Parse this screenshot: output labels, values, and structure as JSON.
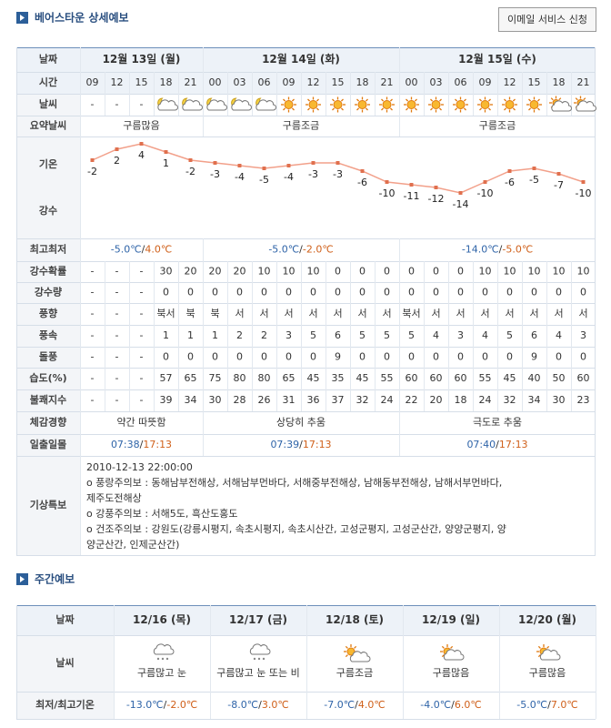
{
  "header": {
    "title": "베어스타운 상세예보",
    "button": "이메일 서비스 신청"
  },
  "detail": {
    "labels": {
      "date": "날짜",
      "time": "시간",
      "weather": "날씨",
      "summary": "요약날씨",
      "temp": "기온",
      "precip": "강수",
      "high_low": "최고최저"
    },
    "dates": [
      "12월 13일 (월)",
      "12월 14일 (화)",
      "12월 15일 (수)"
    ],
    "times": [
      "09",
      "12",
      "15",
      "18",
      "21",
      "00",
      "03",
      "06",
      "09",
      "12",
      "15",
      "18",
      "21",
      "00",
      "03",
      "06",
      "09",
      "12",
      "15",
      "18",
      "21"
    ],
    "weather": [
      "-",
      "-",
      "-",
      null,
      null,
      null,
      null,
      null,
      null,
      null,
      null,
      null,
      null,
      null,
      null,
      null,
      null,
      null,
      null,
      null,
      null
    ],
    "summary": [
      "구름많음",
      "구름조금",
      "구름조금"
    ],
    "temperature": [
      -2,
      2,
      4,
      1,
      -2,
      -3,
      -4,
      -5,
      -4,
      -3,
      -3,
      -6,
      -10,
      -11,
      -12,
      -14,
      -10,
      -6,
      -5,
      -7,
      -10
    ],
    "high_low": [
      [
        "-5.0℃",
        "/",
        "4.0℃"
      ],
      [
        "-5.0℃",
        "/",
        "-2.0℃"
      ],
      [
        "-14.0℃",
        "/",
        "-5.0℃"
      ]
    ],
    "rows": [
      {
        "label": "강수확률",
        "values": [
          "-",
          "-",
          "-",
          30,
          20,
          20,
          20,
          10,
          10,
          10,
          0,
          0,
          0,
          0,
          0,
          0,
          10,
          10,
          10,
          10,
          10
        ]
      },
      {
        "label": "강수량",
        "values": [
          "-",
          "-",
          "-",
          0,
          0,
          0,
          0,
          0,
          0,
          0,
          0,
          0,
          0,
          0,
          0,
          0,
          0,
          0,
          0,
          0,
          0
        ]
      },
      {
        "label": "풍향",
        "values": [
          "-",
          "-",
          "-",
          "북서",
          "북",
          "북",
          "서",
          "서",
          "서",
          "서",
          "서",
          "서",
          "서",
          "북서",
          "서",
          "서",
          "서",
          "서",
          "서",
          "서",
          "서"
        ]
      },
      {
        "label": "풍속",
        "values": [
          "-",
          "-",
          "-",
          1,
          1,
          1,
          2,
          2,
          3,
          5,
          6,
          5,
          5,
          5,
          4,
          3,
          4,
          5,
          6,
          4,
          3
        ]
      },
      {
        "label": "돌풍",
        "values": [
          "-",
          "-",
          "-",
          0,
          0,
          0,
          0,
          0,
          0,
          0,
          9,
          0,
          0,
          0,
          0,
          0,
          0,
          0,
          9,
          0,
          0
        ]
      },
      {
        "label": "습도(%)",
        "values": [
          "-",
          "-",
          "-",
          57,
          65,
          75,
          80,
          80,
          65,
          45,
          35,
          45,
          55,
          60,
          60,
          60,
          55,
          45,
          40,
          50,
          60
        ]
      },
      {
        "label": "불쾌지수",
        "values": [
          "-",
          "-",
          "-",
          39,
          34,
          30,
          28,
          26,
          31,
          36,
          37,
          32,
          24,
          22,
          20,
          18,
          24,
          32,
          34,
          30,
          23
        ]
      }
    ],
    "feel": {
      "label": "체감경향",
      "values": [
        "약간 따뜻함",
        "상당히 추움",
        "극도로 추움"
      ]
    },
    "sun": {
      "label": "일출일몰",
      "values": [
        [
          "07:38",
          "/",
          "17:13"
        ],
        [
          "07:39",
          "/",
          "17:13"
        ],
        [
          "07:40",
          "/",
          "17:13"
        ]
      ]
    },
    "warning": {
      "label": "기상특보",
      "lines": [
        "2010-12-13 22:00:00",
        "o 풍랑주의보 : 동해남부전해상, 서해남부먼바다, 서해중부전해상, 남해동부전해상, 남해서부먼바다,",
        "제주도전해상",
        "o 강풍주의보 : 서해5도, 흑산도홍도",
        "o 건조주의보 : 강원도(강릉시평지, 속초시평지, 속초시산간, 고성군평지, 고성군산간, 양양군평지, 양",
        "양군산간, 인제군산간)"
      ]
    }
  },
  "weekly": {
    "title": "주간예보",
    "labels": [
      "날짜",
      "날씨",
      "최저/최고기온"
    ],
    "dates": [
      "12/16 (목)",
      "12/17 (금)",
      "12/18 (토)",
      "12/19 (일)",
      "12/20 (월)"
    ],
    "weather": [
      "구름많고 눈",
      "구름많고 눈 또는 비",
      "구름조금",
      "구름많음",
      "구름많음"
    ],
    "temps": [
      [
        "-13.0℃",
        "/",
        "-2.0℃"
      ],
      [
        "-8.0℃",
        "/",
        "3.0℃"
      ],
      [
        "-7.0℃",
        "/",
        "4.0℃"
      ],
      [
        "-4.0℃",
        "/",
        "6.0℃"
      ],
      [
        "-5.0℃",
        "/",
        "7.0℃"
      ]
    ]
  }
}
